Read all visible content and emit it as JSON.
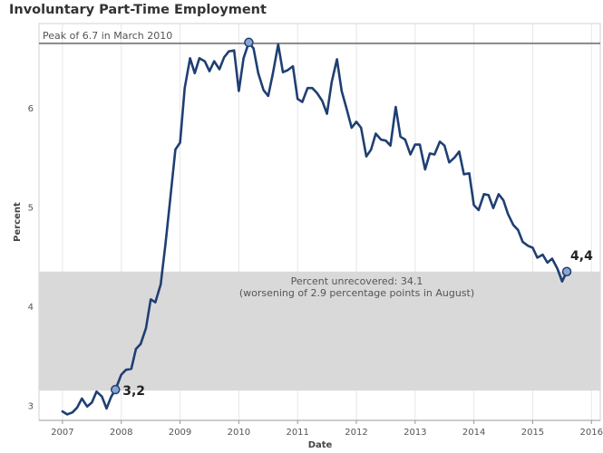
{
  "chart_data": {
    "type": "line",
    "title": "Involuntary Part-Time Employment",
    "xlabel": "Date",
    "ylabel": "Percent",
    "xlim": [
      2006.6,
      2016.15
    ],
    "ylim": [
      2.85,
      6.85
    ],
    "x_ticks": [
      2007,
      2008,
      2009,
      2010,
      2011,
      2012,
      2013,
      2014,
      2015,
      2016
    ],
    "y_ticks": [
      3,
      4,
      5,
      6
    ],
    "grid": "vertical",
    "line_color": "#1f3f73",
    "band": {
      "from": 3.15,
      "to": 4.35,
      "color": "#d9d9d9",
      "label_line1": "Percent unrecovered: 34.1",
      "label_line2": "(worsening of 2.9 percentage points in August)"
    },
    "reference_line": {
      "value": 6.65,
      "label": "Peak of 6.7 in March 2010",
      "color": "#888888"
    },
    "markers": [
      {
        "x": 2007.9,
        "y": 3.16,
        "label": "3,2"
      },
      {
        "x": 2010.17,
        "y": 6.66,
        "label": ""
      },
      {
        "x": 2015.58,
        "y": 4.35,
        "label": "4,4"
      }
    ],
    "series": [
      {
        "values": [
          [
            2007.0,
            2.94
          ],
          [
            2007.08,
            2.91
          ],
          [
            2007.17,
            2.93
          ],
          [
            2007.25,
            2.98
          ],
          [
            2007.33,
            3.07
          ],
          [
            2007.42,
            2.99
          ],
          [
            2007.5,
            3.03
          ],
          [
            2007.58,
            3.14
          ],
          [
            2007.67,
            3.09
          ],
          [
            2007.75,
            2.97
          ],
          [
            2007.83,
            3.09
          ],
          [
            2007.9,
            3.16
          ],
          [
            2008.0,
            3.31
          ],
          [
            2008.08,
            3.36
          ],
          [
            2008.17,
            3.37
          ],
          [
            2008.25,
            3.57
          ],
          [
            2008.33,
            3.62
          ],
          [
            2008.42,
            3.78
          ],
          [
            2008.5,
            4.07
          ],
          [
            2008.58,
            4.04
          ],
          [
            2008.67,
            4.22
          ],
          [
            2008.75,
            4.62
          ],
          [
            2008.83,
            5.06
          ],
          [
            2008.92,
            5.58
          ],
          [
            2009.0,
            5.65
          ],
          [
            2009.08,
            6.2
          ],
          [
            2009.17,
            6.5
          ],
          [
            2009.25,
            6.35
          ],
          [
            2009.33,
            6.5
          ],
          [
            2009.42,
            6.47
          ],
          [
            2009.5,
            6.37
          ],
          [
            2009.58,
            6.47
          ],
          [
            2009.67,
            6.39
          ],
          [
            2009.75,
            6.51
          ],
          [
            2009.83,
            6.57
          ],
          [
            2009.92,
            6.58
          ],
          [
            2010.0,
            6.17
          ],
          [
            2010.08,
            6.5
          ],
          [
            2010.17,
            6.66
          ],
          [
            2010.25,
            6.6
          ],
          [
            2010.33,
            6.35
          ],
          [
            2010.42,
            6.18
          ],
          [
            2010.5,
            6.12
          ],
          [
            2010.58,
            6.35
          ],
          [
            2010.67,
            6.64
          ],
          [
            2010.75,
            6.36
          ],
          [
            2010.83,
            6.38
          ],
          [
            2010.92,
            6.42
          ],
          [
            2011.0,
            6.09
          ],
          [
            2011.08,
            6.06
          ],
          [
            2011.17,
            6.2
          ],
          [
            2011.25,
            6.2
          ],
          [
            2011.33,
            6.15
          ],
          [
            2011.42,
            6.07
          ],
          [
            2011.5,
            5.94
          ],
          [
            2011.58,
            6.26
          ],
          [
            2011.67,
            6.49
          ],
          [
            2011.75,
            6.17
          ],
          [
            2011.83,
            6.0
          ],
          [
            2011.92,
            5.8
          ],
          [
            2012.0,
            5.86
          ],
          [
            2012.08,
            5.8
          ],
          [
            2012.17,
            5.51
          ],
          [
            2012.25,
            5.58
          ],
          [
            2012.33,
            5.74
          ],
          [
            2012.42,
            5.68
          ],
          [
            2012.5,
            5.67
          ],
          [
            2012.58,
            5.62
          ],
          [
            2012.67,
            6.01
          ],
          [
            2012.75,
            5.71
          ],
          [
            2012.83,
            5.68
          ],
          [
            2012.92,
            5.53
          ],
          [
            2013.0,
            5.63
          ],
          [
            2013.08,
            5.63
          ],
          [
            2013.17,
            5.38
          ],
          [
            2013.25,
            5.54
          ],
          [
            2013.33,
            5.53
          ],
          [
            2013.42,
            5.66
          ],
          [
            2013.5,
            5.62
          ],
          [
            2013.58,
            5.45
          ],
          [
            2013.67,
            5.5
          ],
          [
            2013.75,
            5.56
          ],
          [
            2013.83,
            5.33
          ],
          [
            2013.92,
            5.34
          ],
          [
            2014.0,
            5.02
          ],
          [
            2014.08,
            4.97
          ],
          [
            2014.17,
            5.13
          ],
          [
            2014.25,
            5.12
          ],
          [
            2014.33,
            4.99
          ],
          [
            2014.42,
            5.13
          ],
          [
            2014.5,
            5.07
          ],
          [
            2014.58,
            4.93
          ],
          [
            2014.67,
            4.82
          ],
          [
            2014.75,
            4.77
          ],
          [
            2014.83,
            4.65
          ],
          [
            2014.92,
            4.61
          ],
          [
            2015.0,
            4.59
          ],
          [
            2015.08,
            4.49
          ],
          [
            2015.17,
            4.52
          ],
          [
            2015.25,
            4.44
          ],
          [
            2015.33,
            4.48
          ],
          [
            2015.42,
            4.38
          ],
          [
            2015.5,
            4.25
          ],
          [
            2015.58,
            4.35
          ]
        ]
      }
    ]
  }
}
